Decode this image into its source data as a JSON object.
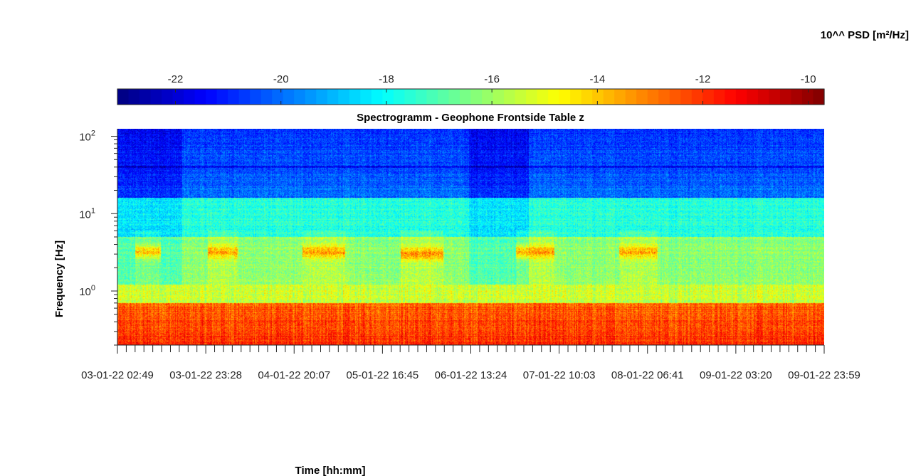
{
  "chart_data": {
    "type": "heatmap",
    "title": "Spectrogramm - Geophone Frontside Table z",
    "xlabel": "Time [hh:mm]",
    "ylabel": "Frequency [Hz]",
    "colorbar": {
      "label": "10^^ PSD [m²/Hz]",
      "range": [
        -23.1,
        -9.7
      ],
      "ticks": [
        -22,
        -20,
        -18,
        -16,
        -14,
        -12,
        -10
      ],
      "colormap": "jet",
      "position": "top"
    },
    "x_ticks": [
      "03-01-22 02:49",
      "03-01-22 23:28",
      "04-01-22 20:07",
      "05-01-22 16:45",
      "06-01-22 13:24",
      "07-01-22 10:03",
      "08-01-22 06:41",
      "09-01-22 03:20",
      "09-01-22 23:59"
    ],
    "y_scale": "log",
    "y_range": [
      0.2,
      125
    ],
    "y_ticks": [
      {
        "value": 1,
        "label": "10",
        "exp": "0"
      },
      {
        "value": 10,
        "label": "10",
        "exp": "1"
      },
      {
        "value": 100,
        "label": "10",
        "exp": "2"
      }
    ],
    "grid": false,
    "frequency_bands": [
      {
        "f_min": 16,
        "f_max": 125,
        "level": -20.0
      },
      {
        "f_min": 5,
        "f_max": 16,
        "level": -17.6
      },
      {
        "f_min": 1.2,
        "f_max": 5,
        "level": -16.2
      },
      {
        "f_min": 0.7,
        "f_max": 1.2,
        "level": -15.4
      },
      {
        "f_min": 0.2,
        "f_max": 0.7,
        "level": -12.6
      }
    ],
    "quiet_periods": [
      {
        "start": "03-01-22 02:49",
        "end": "03-01-22 18:00",
        "level_shift": -0.8
      },
      {
        "start": "06-01-22 13:00",
        "end": "07-01-22 03:00",
        "level_shift": -0.8
      }
    ],
    "activity_periods": [
      {
        "start": "03-01-22 07:00",
        "end": "03-01-22 13:00",
        "frequency": 3.2,
        "level": -13.8
      },
      {
        "start": "04-01-22 00:00",
        "end": "04-01-22 07:00",
        "frequency": 3.2,
        "level": -13.5
      },
      {
        "start": "04-01-22 22:00",
        "end": "05-01-22 08:00",
        "frequency": 3.2,
        "level": -13.3
      },
      {
        "start": "05-01-22 21:00",
        "end": "06-01-22 07:00",
        "frequency": 3.0,
        "level": -13.0
      },
      {
        "start": "07-01-22 00:00",
        "end": "07-01-22 09:00",
        "frequency": 3.2,
        "level": -13.3
      },
      {
        "start": "08-01-22 00:00",
        "end": "08-01-22 09:00",
        "frequency": 3.2,
        "level": -13.4
      }
    ]
  }
}
